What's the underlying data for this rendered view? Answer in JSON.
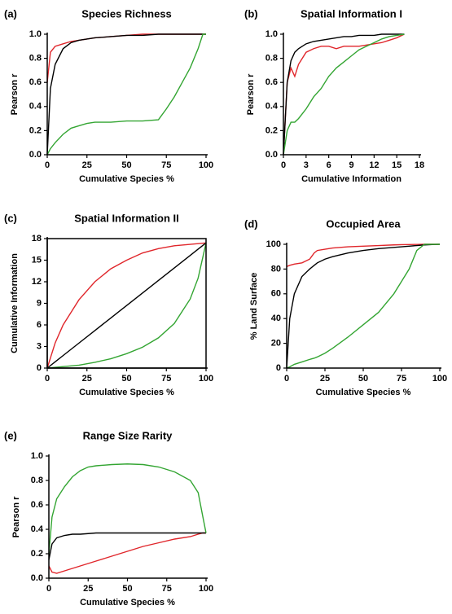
{
  "chart_data": [
    {
      "type": "line",
      "label": "(a)",
      "title": "Species Richness",
      "xlabel": "Cumulative Species %",
      "ylabel": "Pearson r",
      "x": [
        0,
        2,
        5,
        10,
        15,
        20,
        25,
        30,
        40,
        50,
        60,
        70,
        75,
        80,
        85,
        90,
        95,
        98,
        100
      ],
      "series": [
        {
          "color": "#e0262b",
          "values": [
            0.6,
            0.85,
            0.9,
            0.92,
            0.94,
            0.95,
            0.96,
            0.97,
            0.98,
            0.99,
            1.0,
            1.0,
            1.0,
            1.0,
            1.0,
            1.0,
            1.0,
            1.0,
            1.0
          ]
        },
        {
          "color": "#000000",
          "values": [
            0.0,
            0.55,
            0.75,
            0.88,
            0.93,
            0.95,
            0.96,
            0.97,
            0.98,
            0.99,
            0.99,
            1.0,
            1.0,
            1.0,
            1.0,
            1.0,
            1.0,
            1.0,
            1.0
          ]
        },
        {
          "color": "#33a532",
          "values": [
            0.0,
            0.05,
            0.1,
            0.17,
            0.22,
            0.24,
            0.26,
            0.27,
            0.27,
            0.28,
            0.28,
            0.29,
            0.38,
            0.48,
            0.6,
            0.72,
            0.88,
            1.0,
            1.0
          ]
        }
      ],
      "xlim": [
        0,
        100
      ],
      "xticks": [
        0,
        25,
        50,
        75,
        100
      ],
      "ylim": [
        0,
        1
      ],
      "yticks": [
        {
          "value": 0,
          "label": "0.0"
        },
        0.2,
        0.4,
        0.6,
        0.8,
        {
          "value": 1,
          "label": "1.0"
        }
      ]
    },
    {
      "type": "line",
      "label": "(b)",
      "title": "Spatial Information I",
      "xlabel": "Cumulative Information",
      "ylabel": "Pearson r",
      "x": [
        0,
        0.5,
        1,
        1.5,
        2,
        3,
        4,
        5,
        6,
        7,
        8,
        9,
        10,
        11,
        12,
        13,
        14,
        15,
        16
      ],
      "series": [
        {
          "color": "#e0262b",
          "values": [
            0.0,
            0.6,
            0.72,
            0.65,
            0.75,
            0.85,
            0.88,
            0.9,
            0.9,
            0.88,
            0.9,
            0.9,
            0.9,
            0.91,
            0.92,
            0.93,
            0.95,
            0.97,
            1.0
          ]
        },
        {
          "color": "#000000",
          "values": [
            0.0,
            0.6,
            0.78,
            0.85,
            0.88,
            0.92,
            0.94,
            0.95,
            0.96,
            0.97,
            0.98,
            0.98,
            0.99,
            0.99,
            0.99,
            1.0,
            1.0,
            1.0,
            1.0
          ]
        },
        {
          "color": "#33a532",
          "values": [
            0.0,
            0.2,
            0.27,
            0.27,
            0.3,
            0.38,
            0.48,
            0.55,
            0.65,
            0.72,
            0.77,
            0.82,
            0.87,
            0.9,
            0.93,
            0.96,
            0.98,
            0.99,
            1.0
          ]
        }
      ],
      "xlim": [
        0,
        18
      ],
      "xticks": [
        0,
        3,
        6,
        9,
        12,
        15,
        18
      ],
      "ylim": [
        0,
        1
      ],
      "yticks": [
        {
          "value": 0,
          "label": "0.0"
        },
        0.2,
        0.4,
        0.6,
        0.8,
        {
          "value": 1,
          "label": "1.0"
        }
      ]
    },
    {
      "type": "line",
      "label": "(c)",
      "title": "Spatial Information II",
      "xlabel": "Cumulative Species %",
      "ylabel": "Cumulative Information",
      "box": true,
      "x": [
        0,
        5,
        10,
        20,
        30,
        40,
        50,
        60,
        70,
        80,
        90,
        95,
        100
      ],
      "series": [
        {
          "color": "#e0262b",
          "values": [
            0,
            3.5,
            6,
            9.5,
            12,
            13.8,
            15,
            16,
            16.6,
            17,
            17.2,
            17.3,
            17.4
          ]
        },
        {
          "color": "#000000",
          "values": [
            0,
            0.87,
            1.74,
            3.48,
            5.22,
            6.96,
            8.7,
            10.44,
            12.18,
            13.92,
            15.66,
            16.53,
            17.4
          ]
        },
        {
          "color": "#33a532",
          "values": [
            0,
            0.1,
            0.2,
            0.4,
            0.8,
            1.3,
            2,
            2.9,
            4.2,
            6.2,
            9.6,
            12.5,
            17.4
          ]
        }
      ],
      "xlim": [
        0,
        100
      ],
      "xticks": [
        0,
        25,
        50,
        75,
        100
      ],
      "ylim": [
        0,
        18
      ],
      "yticks": [
        0,
        3,
        6,
        9,
        12,
        15,
        18
      ]
    },
    {
      "type": "line",
      "label": "(d)",
      "title": "Occupied Area",
      "xlabel": "Cumulative Species %",
      "ylabel": "% Land Surface",
      "x": [
        0,
        2,
        5,
        10,
        15,
        18,
        20,
        25,
        30,
        40,
        50,
        60,
        70,
        75,
        80,
        85,
        90,
        95,
        100
      ],
      "series": [
        {
          "color": "#e0262b",
          "values": [
            82,
            83,
            84,
            85,
            88,
            93,
            95,
            96,
            97,
            98,
            98.5,
            99,
            99.5,
            99.7,
            99.8,
            99.9,
            100,
            100,
            100
          ]
        },
        {
          "color": "#000000",
          "values": [
            0,
            40,
            60,
            74,
            80,
            83,
            85,
            88,
            90,
            93,
            95,
            96.5,
            97.5,
            98,
            98.5,
            99,
            99.5,
            99.8,
            100
          ]
        },
        {
          "color": "#33a532",
          "values": [
            0,
            1,
            3,
            5,
            7,
            8,
            9,
            12,
            16,
            25,
            35,
            45,
            60,
            70,
            80,
            95,
            100,
            100,
            100
          ]
        }
      ],
      "xlim": [
        0,
        100
      ],
      "xticks": [
        0,
        25,
        50,
        75,
        100
      ],
      "ylim": [
        0,
        100
      ],
      "yticks": [
        0,
        20,
        40,
        60,
        80,
        100
      ]
    },
    {
      "type": "line",
      "label": "(e)",
      "title": "Range Size Rarity",
      "xlabel": "Cumulative Species %",
      "ylabel": "Pearson r",
      "x": [
        0,
        2,
        5,
        10,
        15,
        20,
        25,
        30,
        40,
        50,
        60,
        70,
        80,
        90,
        95,
        98,
        100
      ],
      "series": [
        {
          "color": "#e0262b",
          "values": [
            0.1,
            0.05,
            0.04,
            0.06,
            0.08,
            0.1,
            0.12,
            0.14,
            0.18,
            0.22,
            0.26,
            0.29,
            0.32,
            0.34,
            0.36,
            0.37,
            0.37
          ]
        },
        {
          "color": "#000000",
          "values": [
            0.15,
            0.28,
            0.33,
            0.35,
            0.36,
            0.36,
            0.365,
            0.37,
            0.37,
            0.37,
            0.37,
            0.37,
            0.37,
            0.37,
            0.37,
            0.37,
            0.37
          ]
        },
        {
          "color": "#33a532",
          "values": [
            0.2,
            0.5,
            0.65,
            0.75,
            0.83,
            0.88,
            0.91,
            0.92,
            0.93,
            0.935,
            0.93,
            0.91,
            0.87,
            0.8,
            0.7,
            0.5,
            0.37
          ]
        }
      ],
      "xlim": [
        0,
        100
      ],
      "xticks": [
        0,
        25,
        50,
        75,
        100
      ],
      "ylim": [
        0,
        1
      ],
      "yticks": [
        {
          "value": 0,
          "label": "0.0"
        },
        0.2,
        0.4,
        0.6,
        0.8,
        {
          "value": 1,
          "label": "1.0"
        }
      ]
    }
  ]
}
